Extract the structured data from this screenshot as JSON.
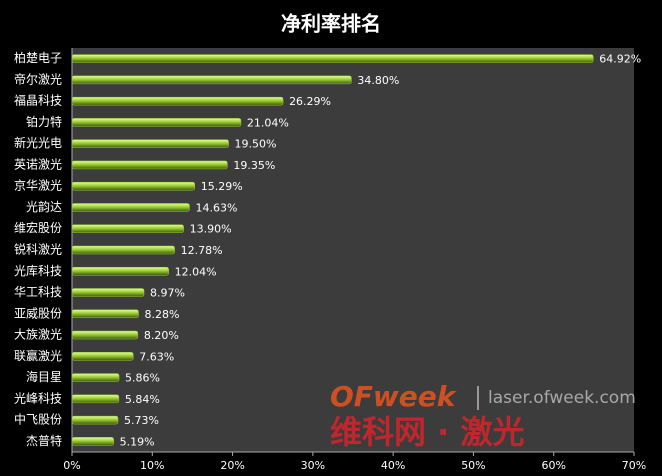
{
  "chart_data": {
    "type": "hbar",
    "title": "净利率排名",
    "categories": [
      "柏楚电子",
      "帝尔激光",
      "福晶科技",
      "铂力特",
      "新光光电",
      "英诺激光",
      "京华激光",
      "光韵达",
      "维宏股份",
      "锐科激光",
      "光库科技",
      "华工科技",
      "亚威股份",
      "大族激光",
      "联赢激光",
      "海目星",
      "光峰科技",
      "中飞股份",
      "杰普特"
    ],
    "values": [
      64.92,
      34.8,
      26.29,
      21.04,
      19.5,
      19.35,
      15.29,
      14.63,
      13.9,
      12.78,
      12.04,
      8.97,
      8.28,
      8.2,
      7.63,
      5.86,
      5.84,
      5.73,
      5.19
    ],
    "value_labels": [
      "64.92%",
      "34.80%",
      "26.29%",
      "21.04%",
      "19.50%",
      "19.35%",
      "15.29%",
      "14.63%",
      "13.90%",
      "12.78%",
      "12.04%",
      "8.97%",
      "8.28%",
      "8.20%",
      "7.63%",
      "5.86%",
      "5.84%",
      "5.73%",
      "5.19%"
    ],
    "color": "#9acd32",
    "xlim": [
      0,
      70
    ],
    "xticks": [
      {
        "value": 0,
        "label": "0%"
      },
      {
        "value": 10,
        "label": "10%"
      },
      {
        "value": 20,
        "label": "20%"
      },
      {
        "value": 30,
        "label": "30%"
      },
      {
        "value": 40,
        "label": "40%"
      },
      {
        "value": 50,
        "label": "50%"
      },
      {
        "value": 60,
        "label": "60%"
      },
      {
        "value": 70,
        "label": "70%"
      }
    ],
    "watermark": {
      "brand": "OFweek",
      "url": "laser.ofweek.com",
      "text": "维科网 · 激光"
    }
  }
}
